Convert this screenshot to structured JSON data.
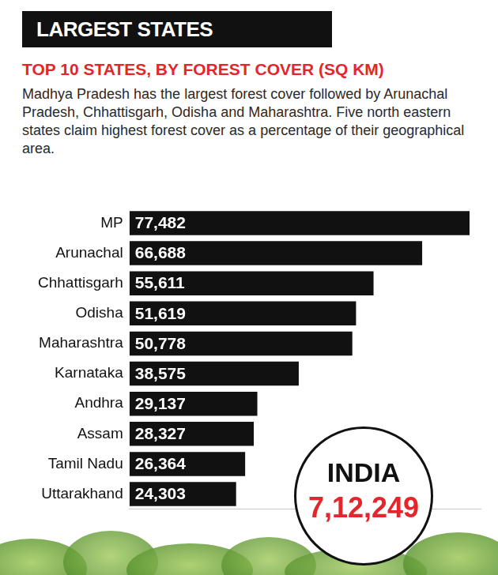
{
  "chart_data": {
    "type": "bar",
    "header": "LARGEST STATES",
    "title": "TOP 10 STATES, BY FOREST COVER (SQ KM)",
    "subtitle": "Madhya Pradesh has the largest forest cover followed by Arunachal Pradesh, Chhattisgarh, Odisha and Maharashtra. Five north eastern states claim highest forest cover as a percentage of their geographical area.",
    "categories": [
      "MP",
      "Arunachal",
      "Chhattisgarh",
      "Odisha",
      "Maharashtra",
      "Karnataka",
      "Andhra",
      "Assam",
      "Tamil Nadu",
      "Uttarakhand"
    ],
    "values": [
      77482,
      66688,
      55611,
      51619,
      50778,
      38575,
      29137,
      28327,
      26364,
      24303
    ],
    "value_labels": [
      "77,482",
      "66,688",
      "55,611",
      "51,619",
      "50,778",
      "38,575",
      "29,137",
      "28,327",
      "26,364",
      "24,303"
    ],
    "color": "#111111",
    "orientation": "horizontal",
    "xlim": [
      0,
      80000
    ],
    "data_labels": true,
    "tick_labels": "y",
    "grid": false,
    "annotation": {
      "title": "INDIA",
      "text": "7,12,249"
    }
  }
}
